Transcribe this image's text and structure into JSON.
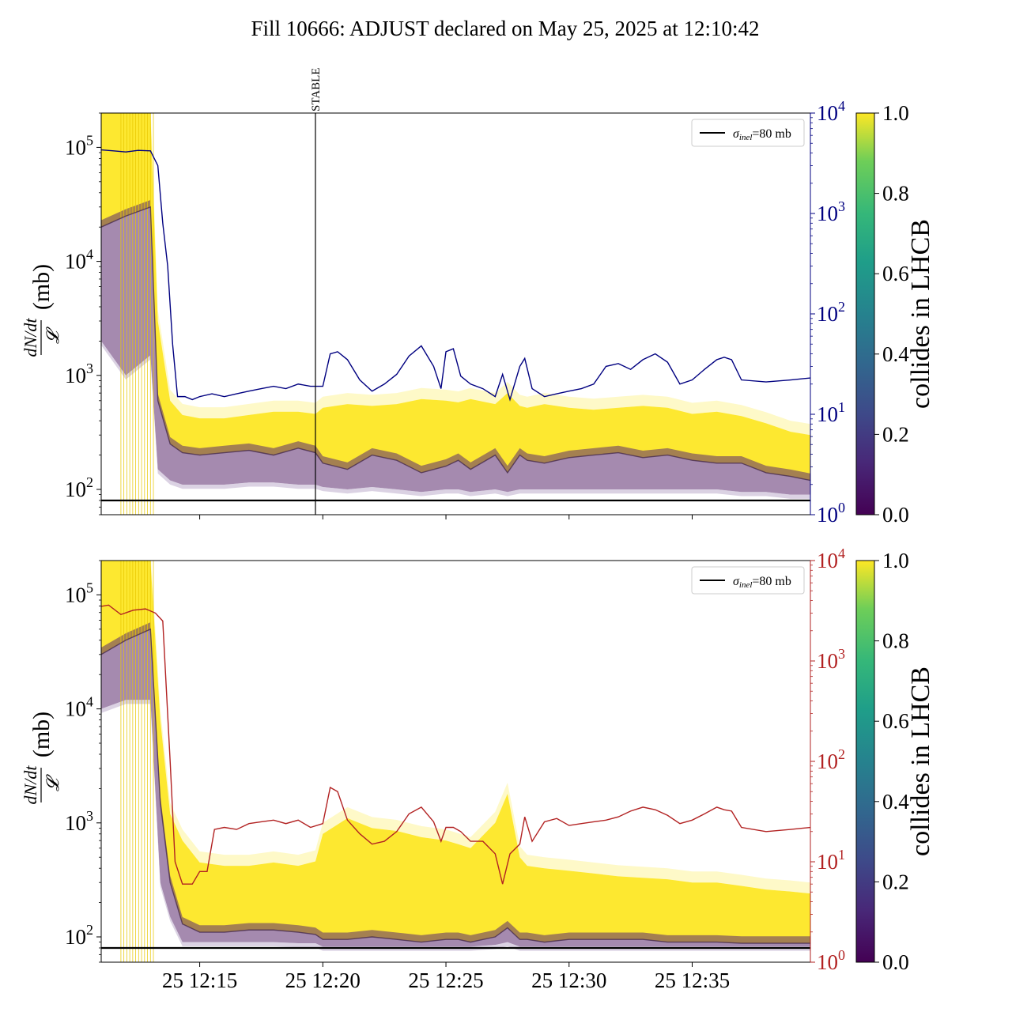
{
  "figure": {
    "title": "Fill 10666: ADJUST declared on May 25, 2025 at 12:10:42"
  },
  "chart_data": [
    {
      "type": "line",
      "panel": "top",
      "ylabel_num": "dN/dt",
      "ylabel_den": "𝓛",
      "ylabel_unit": "(mb)",
      "yscale": "log",
      "ylim": [
        60,
        200000
      ],
      "yticks": [
        {
          "value": 100,
          "base": "10",
          "exp": "2"
        },
        {
          "value": 1000,
          "base": "10",
          "exp": "3"
        },
        {
          "value": 10000,
          "base": "10",
          "exp": "4"
        },
        {
          "value": 100000,
          "base": "10",
          "exp": "5"
        }
      ],
      "y2_scale": "log",
      "y2_lim": [
        1,
        10000
      ],
      "y2_color": "#000080",
      "y2_ticks": [
        {
          "value": 1,
          "base": "10",
          "exp": "0"
        },
        {
          "value": 10,
          "base": "10",
          "exp": "1"
        },
        {
          "value": 100,
          "base": "10",
          "exp": "2"
        },
        {
          "value": 1000,
          "base": "10",
          "exp": "3"
        },
        {
          "value": 10000,
          "base": "10",
          "exp": "4"
        }
      ],
      "xlim_minutes": [
        11.0,
        39.8
      ],
      "xticks": [],
      "hline": {
        "value": 80,
        "color": "#000000"
      },
      "vline": {
        "x_minutes": 19.7,
        "label": "STABLE"
      },
      "legend": {
        "location": "top-right",
        "label_sym": "σ",
        "label_sub": "inel",
        "label_rest": "=80 mb"
      },
      "band_envelope": {
        "x_minutes": [
          11.0,
          12.0,
          13.0,
          13.3,
          13.8,
          14.3,
          15,
          16,
          17,
          18,
          19,
          19.7,
          20,
          21,
          22,
          23,
          24,
          25,
          25.5,
          26,
          27,
          27.5,
          28,
          28.3,
          29,
          30,
          31,
          32,
          33,
          34,
          35,
          36,
          37,
          38,
          39,
          39.8
        ],
        "yellow_top": [
          200000,
          200000,
          200000,
          3000,
          600,
          450,
          420,
          420,
          450,
          480,
          480,
          460,
          520,
          560,
          540,
          560,
          620,
          600,
          580,
          620,
          560,
          700,
          540,
          520,
          560,
          520,
          500,
          520,
          540,
          520,
          460,
          480,
          440,
          380,
          320,
          300
        ],
        "dark_mid": [
          20000,
          25000,
          30000,
          600,
          250,
          210,
          200,
          210,
          220,
          200,
          230,
          210,
          170,
          150,
          200,
          180,
          140,
          160,
          180,
          150,
          200,
          140,
          200,
          180,
          170,
          190,
          200,
          210,
          190,
          200,
          180,
          170,
          170,
          140,
          130,
          120
        ],
        "purple_bottom": [
          2000,
          1000,
          1500,
          150,
          120,
          110,
          110,
          110,
          115,
          115,
          110,
          110,
          105,
          100,
          105,
          100,
          95,
          100,
          100,
          95,
          100,
          95,
          100,
          100,
          100,
          100,
          100,
          100,
          100,
          100,
          100,
          100,
          95,
          95,
          90,
          90
        ]
      },
      "secondary_series": {
        "color": "#000080",
        "x_minutes": [
          11.0,
          11.5,
          12.0,
          12.5,
          13.0,
          13.3,
          13.5,
          13.7,
          13.9,
          14.1,
          14.4,
          14.7,
          15,
          15.5,
          16,
          16.5,
          17,
          17.5,
          18,
          18.5,
          19,
          19.5,
          20,
          20.3,
          20.6,
          21,
          21.5,
          22,
          22.5,
          23,
          23.5,
          24,
          24.5,
          24.8,
          25.0,
          25.3,
          25.6,
          26,
          26.5,
          27,
          27.3,
          27.6,
          28,
          28.2,
          28.5,
          29,
          29.5,
          30,
          30.5,
          31,
          31.5,
          32,
          32.5,
          33,
          33.5,
          34,
          34.5,
          35,
          35.5,
          36,
          36.3,
          36.6,
          37,
          38,
          39,
          39.8
        ],
        "y": [
          4300,
          4200,
          4100,
          4250,
          4200,
          3000,
          800,
          300,
          50,
          15,
          15,
          14,
          15,
          16,
          15,
          16,
          17,
          18,
          19,
          18,
          20,
          19,
          19,
          40,
          42,
          35,
          22,
          17,
          20,
          25,
          38,
          48,
          30,
          18,
          42,
          45,
          24,
          20,
          18,
          15,
          25,
          14,
          30,
          36,
          18,
          15,
          16,
          17,
          18,
          20,
          30,
          32,
          28,
          35,
          40,
          33,
          20,
          22,
          28,
          35,
          37,
          35,
          22,
          21,
          22,
          23
        ]
      },
      "colorbar": {
        "label": "collides in LHCB",
        "colormap": "viridis",
        "range": [
          0,
          1
        ],
        "ticks": [
          "0.0",
          "0.2",
          "0.4",
          "0.6",
          "0.8",
          "1.0"
        ]
      }
    },
    {
      "type": "line",
      "panel": "bottom",
      "ylabel_num": "dN/dt",
      "ylabel_den": "𝓛",
      "ylabel_unit": "(mb)",
      "yscale": "log",
      "ylim": [
        60,
        200000
      ],
      "yticks": [
        {
          "value": 100,
          "base": "10",
          "exp": "2"
        },
        {
          "value": 1000,
          "base": "10",
          "exp": "3"
        },
        {
          "value": 10000,
          "base": "10",
          "exp": "4"
        },
        {
          "value": 100000,
          "base": "10",
          "exp": "5"
        }
      ],
      "y2_scale": "log",
      "y2_lim": [
        1,
        10000
      ],
      "y2_color": "#b22222",
      "y2_ticks": [
        {
          "value": 1,
          "base": "10",
          "exp": "0"
        },
        {
          "value": 10,
          "base": "10",
          "exp": "1"
        },
        {
          "value": 100,
          "base": "10",
          "exp": "2"
        },
        {
          "value": 1000,
          "base": "10",
          "exp": "3"
        },
        {
          "value": 10000,
          "base": "10",
          "exp": "4"
        }
      ],
      "xlim_minutes": [
        11.0,
        39.8
      ],
      "xticks": [
        {
          "minutes": 15,
          "label": "25 12:15"
        },
        {
          "minutes": 20,
          "label": "25 12:20"
        },
        {
          "minutes": 25,
          "label": "25 12:25"
        },
        {
          "minutes": 30,
          "label": "25 12:30"
        },
        {
          "minutes": 35,
          "label": "25 12:35"
        }
      ],
      "hline": {
        "value": 80,
        "color": "#000000"
      },
      "legend": {
        "location": "top-right",
        "label_sym": "σ",
        "label_sub": "inel",
        "label_rest": "=80 mb"
      },
      "band_envelope": {
        "x_minutes": [
          11.0,
          12.0,
          13.0,
          13.4,
          13.8,
          14.3,
          15,
          16,
          17,
          18,
          19,
          19.7,
          20,
          21,
          22,
          23,
          24,
          25,
          25.5,
          26,
          27,
          27.5,
          28,
          28.3,
          29,
          30,
          31,
          32,
          33,
          34,
          35,
          36,
          37,
          38,
          39,
          39.8
        ],
        "yellow_top": [
          200000,
          200000,
          200000,
          8000,
          1200,
          700,
          450,
          420,
          420,
          450,
          420,
          460,
          800,
          1100,
          900,
          850,
          750,
          700,
          650,
          600,
          1000,
          1800,
          500,
          420,
          400,
          380,
          360,
          340,
          330,
          320,
          300,
          300,
          280,
          260,
          250,
          240
        ],
        "dark_mid": [
          30000,
          40000,
          50000,
          1500,
          300,
          130,
          110,
          110,
          115,
          115,
          110,
          105,
          95,
          95,
          100,
          95,
          90,
          95,
          95,
          90,
          100,
          120,
          95,
          95,
          90,
          95,
          95,
          95,
          95,
          90,
          90,
          90,
          88,
          88,
          88,
          88
        ],
        "purple_bottom": [
          10000,
          12000,
          12000,
          300,
          150,
          90,
          90,
          90,
          90,
          90,
          88,
          88,
          82,
          82,
          82,
          82,
          82,
          82,
          82,
          82,
          85,
          90,
          82,
          82,
          82,
          82,
          82,
          82,
          82,
          82,
          82,
          82,
          82,
          82,
          82,
          82
        ]
      },
      "secondary_series": {
        "color": "#b22222",
        "x_minutes": [
          11.0,
          11.3,
          11.8,
          12.3,
          12.8,
          13.2,
          13.5,
          13.8,
          14.0,
          14.3,
          14.7,
          15.0,
          15.3,
          15.6,
          16,
          16.5,
          17,
          17.5,
          18,
          18.5,
          19,
          19.5,
          20,
          20.3,
          20.6,
          21,
          21.5,
          22,
          22.5,
          23,
          23.5,
          24,
          24.5,
          24.8,
          25.0,
          25.3,
          25.6,
          26,
          26.5,
          27,
          27.3,
          27.6,
          28,
          28.2,
          28.5,
          29,
          29.5,
          30,
          30.5,
          31,
          31.5,
          32,
          32.5,
          33,
          33.5,
          34,
          34.5,
          35,
          35.5,
          36,
          36.3,
          36.6,
          37,
          38,
          39,
          39.8
        ],
        "y": [
          3500,
          3600,
          2900,
          3200,
          3300,
          3000,
          2500,
          100,
          10,
          6,
          6,
          8,
          8,
          21,
          22,
          21,
          24,
          25,
          26,
          24,
          26,
          22,
          24,
          55,
          50,
          26,
          19,
          15,
          16,
          20,
          30,
          35,
          25,
          16,
          22,
          22,
          20,
          16,
          16,
          12,
          6,
          12,
          15,
          28,
          16,
          25,
          27,
          23,
          24,
          25,
          26,
          28,
          32,
          35,
          33,
          29,
          24,
          26,
          30,
          35,
          33,
          32,
          22,
          20,
          21,
          22
        ]
      },
      "colorbar": {
        "label": "collides in LHCB",
        "colormap": "viridis",
        "range": [
          0,
          1
        ],
        "ticks": [
          "0.0",
          "0.2",
          "0.4",
          "0.6",
          "0.8",
          "1.0"
        ]
      }
    }
  ]
}
